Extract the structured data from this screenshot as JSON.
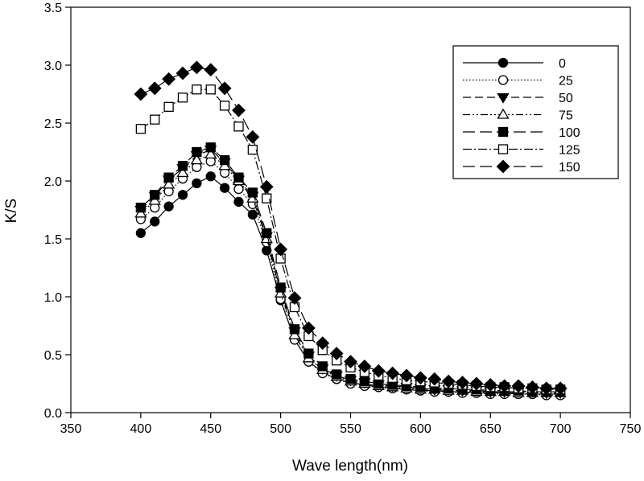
{
  "chart_data": {
    "type": "line",
    "title": "",
    "xlabel": "Wave length(nm)",
    "ylabel": "K/S",
    "xlim": [
      350,
      750
    ],
    "ylim": [
      0,
      3.5
    ],
    "xticks": [
      "350",
      "400",
      "450",
      "500",
      "550",
      "600",
      "650",
      "700",
      "750"
    ],
    "yticks": [
      "0.0",
      "0.5",
      "1.0",
      "1.5",
      "2.0",
      "2.5",
      "3.0",
      "3.5"
    ],
    "grid": false,
    "legend_position": "top-right",
    "x": [
      400,
      410,
      420,
      430,
      440,
      450,
      460,
      470,
      480,
      490,
      500,
      510,
      520,
      530,
      540,
      550,
      560,
      570,
      580,
      590,
      600,
      610,
      620,
      630,
      640,
      650,
      660,
      670,
      680,
      690,
      700
    ],
    "series": [
      {
        "name": "0",
        "marker": "filled-circle",
        "line": "solid",
        "values": [
          1.55,
          1.65,
          1.78,
          1.88,
          1.98,
          2.04,
          1.94,
          1.82,
          1.71,
          1.4,
          0.97,
          0.63,
          0.44,
          0.35,
          0.29,
          0.26,
          0.24,
          0.22,
          0.21,
          0.2,
          0.19,
          0.19,
          0.18,
          0.18,
          0.17,
          0.17,
          0.17,
          0.16,
          0.16,
          0.16,
          0.16
        ]
      },
      {
        "name": "25",
        "marker": "open-circle",
        "line": "dotted",
        "values": [
          1.67,
          1.77,
          1.91,
          2.02,
          2.12,
          2.17,
          2.07,
          1.93,
          1.8,
          1.47,
          0.98,
          0.63,
          0.44,
          0.34,
          0.29,
          0.25,
          0.23,
          0.22,
          0.21,
          0.2,
          0.19,
          0.18,
          0.18,
          0.17,
          0.17,
          0.16,
          0.16,
          0.16,
          0.16,
          0.15,
          0.15
        ]
      },
      {
        "name": "50",
        "marker": "filled-triangle-down",
        "line": "dashed",
        "values": [
          1.75,
          1.87,
          2.01,
          2.11,
          2.22,
          2.27,
          2.16,
          2.01,
          1.87,
          1.52,
          1.05,
          0.7,
          0.49,
          0.38,
          0.32,
          0.28,
          0.26,
          0.24,
          0.23,
          0.22,
          0.21,
          0.2,
          0.2,
          0.19,
          0.19,
          0.18,
          0.18,
          0.18,
          0.18,
          0.17,
          0.17
        ]
      },
      {
        "name": "75",
        "marker": "open-triangle-up",
        "line": "dash-dot-dot",
        "values": [
          1.72,
          1.83,
          1.97,
          2.07,
          2.18,
          2.23,
          2.13,
          2.0,
          1.85,
          1.5,
          1.03,
          0.67,
          0.47,
          0.37,
          0.31,
          0.27,
          0.25,
          0.23,
          0.22,
          0.21,
          0.2,
          0.2,
          0.19,
          0.19,
          0.18,
          0.18,
          0.18,
          0.17,
          0.17,
          0.17,
          0.17
        ]
      },
      {
        "name": "100",
        "marker": "filled-square",
        "line": "long-dash",
        "values": [
          1.77,
          1.88,
          2.03,
          2.13,
          2.25,
          2.29,
          2.18,
          2.03,
          1.9,
          1.55,
          1.08,
          0.72,
          0.51,
          0.4,
          0.33,
          0.29,
          0.27,
          0.25,
          0.24,
          0.23,
          0.22,
          0.21,
          0.21,
          0.2,
          0.2,
          0.19,
          0.19,
          0.19,
          0.18,
          0.18,
          0.18
        ]
      },
      {
        "name": "125",
        "marker": "open-square",
        "line": "dash-dot",
        "values": [
          2.45,
          2.53,
          2.64,
          2.72,
          2.79,
          2.79,
          2.65,
          2.47,
          2.27,
          1.85,
          1.33,
          0.91,
          0.66,
          0.54,
          0.45,
          0.39,
          0.35,
          0.32,
          0.3,
          0.28,
          0.27,
          0.26,
          0.25,
          0.24,
          0.23,
          0.22,
          0.22,
          0.21,
          0.21,
          0.2,
          0.2
        ]
      },
      {
        "name": "150",
        "marker": "filled-diamond",
        "line": "long-dash",
        "values": [
          2.75,
          2.8,
          2.88,
          2.93,
          2.98,
          2.96,
          2.8,
          2.61,
          2.38,
          1.95,
          1.41,
          0.99,
          0.73,
          0.6,
          0.51,
          0.44,
          0.4,
          0.36,
          0.34,
          0.32,
          0.3,
          0.29,
          0.27,
          0.26,
          0.25,
          0.24,
          0.23,
          0.23,
          0.22,
          0.21,
          0.21
        ]
      }
    ]
  }
}
